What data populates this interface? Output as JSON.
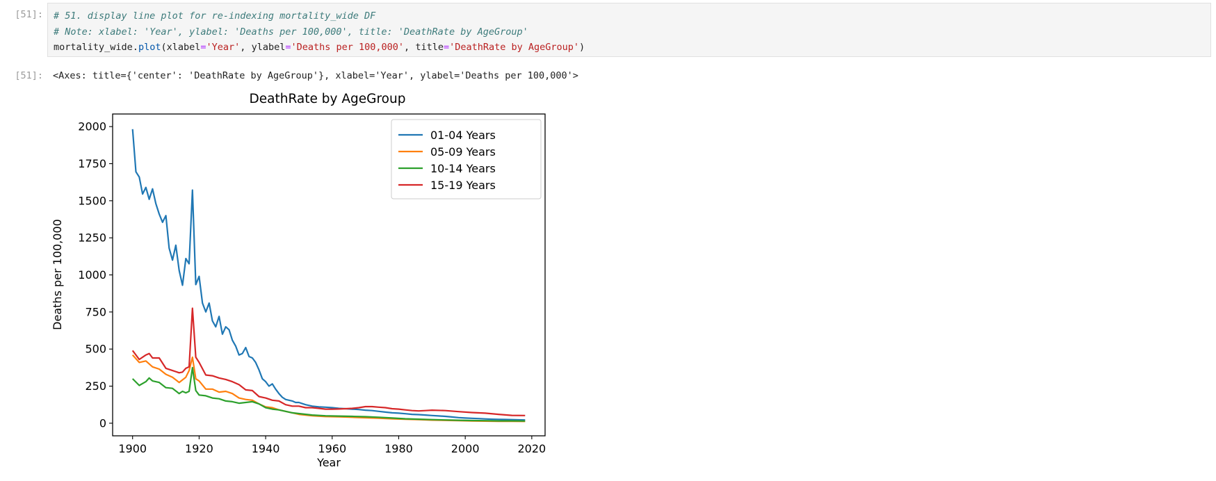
{
  "cell": {
    "in_prompt": "[51]:",
    "out_prompt": "[51]:",
    "code": {
      "comment1": "# 51. display line plot for re-indexing mortality_wide DF",
      "comment2": "# Note: xlabel: 'Year', ylabel: 'Deaths per 100,000', title: 'DeathRate by AgeGroup'",
      "obj": "mortality_wide",
      "dot": ".",
      "method": "plot",
      "open": "(",
      "kw1": "xlabel",
      "eq": "=",
      "val1": "'Year'",
      "sep": ", ",
      "kw2": "ylabel",
      "val2": "'Deaths per 100,000'",
      "kw3": "title",
      "val3": "'DeathRate by AgeGroup'",
      "close": ")"
    },
    "output_text": "<Axes: title={'center': 'DeathRate by AgeGroup'}, xlabel='Year', ylabel='Deaths per 100,000'>"
  },
  "chart_data": {
    "type": "line",
    "title": "DeathRate by AgeGroup",
    "xlabel": "Year",
    "ylabel": "Deaths per 100,000",
    "xlim": [
      1894,
      2024
    ],
    "ylim": [
      -85,
      2085
    ],
    "xticks": [
      1900,
      1920,
      1940,
      1960,
      1980,
      2000,
      2020
    ],
    "yticks": [
      0,
      250,
      500,
      750,
      1000,
      1250,
      1500,
      1750,
      2000
    ],
    "legend_position": "top-right",
    "series": [
      {
        "name": "01-04 Years",
        "color": "#1f77b4",
        "x": [
          1900,
          1901,
          1902,
          1903,
          1904,
          1905,
          1906,
          1907,
          1908,
          1909,
          1910,
          1911,
          1912,
          1913,
          1914,
          1915,
          1916,
          1917,
          1918,
          1919,
          1920,
          1921,
          1922,
          1923,
          1924,
          1925,
          1926,
          1927,
          1928,
          1929,
          1930,
          1931,
          1932,
          1933,
          1934,
          1935,
          1936,
          1937,
          1938,
          1939,
          1940,
          1941,
          1942,
          1943,
          1944,
          1945,
          1946,
          1947,
          1948,
          1949,
          1950,
          1952,
          1954,
          1956,
          1958,
          1960,
          1962,
          1964,
          1966,
          1968,
          1970,
          1972,
          1974,
          1976,
          1978,
          1980,
          1982,
          1984,
          1986,
          1988,
          1990,
          1992,
          1994,
          1996,
          1998,
          2000,
          2002,
          2004,
          2006,
          2008,
          2010,
          2012,
          2014,
          2016,
          2018
        ],
        "values": [
          1983,
          1695,
          1660,
          1545,
          1590,
          1510,
          1580,
          1480,
          1410,
          1355,
          1400,
          1180,
          1100,
          1200,
          1030,
          930,
          1110,
          1075,
          1572,
          935,
          990,
          810,
          750,
          810,
          690,
          650,
          720,
          600,
          650,
          630,
          560,
          520,
          460,
          470,
          510,
          450,
          440,
          410,
          360,
          300,
          280,
          250,
          265,
          230,
          200,
          175,
          160,
          155,
          150,
          140,
          140,
          125,
          115,
          110,
          108,
          105,
          100,
          98,
          95,
          92,
          88,
          85,
          80,
          75,
          70,
          68,
          64,
          60,
          58,
          55,
          52,
          49,
          46,
          42,
          38,
          35,
          33,
          31,
          29,
          27,
          26,
          25,
          24,
          23,
          22
        ]
      },
      {
        "name": "05-09 Years",
        "color": "#ff7f0e",
        "x": [
          1900,
          1902,
          1904,
          1906,
          1908,
          1910,
          1912,
          1914,
          1916,
          1917,
          1918,
          1919,
          1920,
          1922,
          1924,
          1926,
          1928,
          1930,
          1932,
          1934,
          1936,
          1938,
          1940,
          1942,
          1944,
          1946,
          1948,
          1950,
          1954,
          1958,
          1962,
          1966,
          1970,
          1974,
          1978,
          1982,
          1986,
          1990,
          1994,
          1998,
          2002,
          2006,
          2010,
          2014,
          2018
        ],
        "values": [
          460,
          410,
          420,
          380,
          365,
          330,
          310,
          275,
          310,
          355,
          445,
          300,
          285,
          230,
          230,
          210,
          215,
          200,
          170,
          160,
          155,
          130,
          110,
          105,
          90,
          80,
          70,
          60,
          50,
          45,
          43,
          40,
          37,
          34,
          30,
          27,
          24,
          21,
          19,
          17,
          15,
          14,
          13,
          13,
          12
        ]
      },
      {
        "name": "10-14 Years",
        "color": "#2ca02c",
        "x": [
          1900,
          1902,
          1904,
          1905,
          1906,
          1908,
          1910,
          1912,
          1914,
          1915,
          1916,
          1917,
          1918,
          1919,
          1920,
          1922,
          1924,
          1926,
          1928,
          1930,
          1932,
          1934,
          1936,
          1938,
          1940,
          1942,
          1944,
          1946,
          1948,
          1950,
          1954,
          1958,
          1962,
          1966,
          1970,
          1974,
          1978,
          1982,
          1986,
          1990,
          1994,
          1998,
          2002,
          2006,
          2010,
          2014,
          2018
        ],
        "values": [
          300,
          255,
          280,
          305,
          285,
          275,
          240,
          235,
          200,
          215,
          205,
          215,
          375,
          220,
          190,
          185,
          170,
          165,
          150,
          145,
          135,
          140,
          145,
          130,
          105,
          95,
          90,
          80,
          70,
          65,
          55,
          50,
          48,
          46,
          44,
          40,
          35,
          30,
          27,
          24,
          22,
          20,
          18,
          17,
          16,
          16,
          15
        ]
      },
      {
        "name": "15-19 Years",
        "color": "#d62728",
        "x": [
          1900,
          1902,
          1904,
          1905,
          1906,
          1908,
          1910,
          1912,
          1914,
          1915,
          1916,
          1917,
          1918,
          1919,
          1920,
          1922,
          1924,
          1926,
          1928,
          1930,
          1932,
          1934,
          1936,
          1938,
          1940,
          1942,
          1944,
          1946,
          1948,
          1950,
          1952,
          1954,
          1956,
          1958,
          1960,
          1962,
          1964,
          1966,
          1968,
          1970,
          1972,
          1974,
          1976,
          1978,
          1980,
          1982,
          1984,
          1986,
          1988,
          1990,
          1994,
          1998,
          2002,
          2006,
          2010,
          2014,
          2018
        ],
        "values": [
          490,
          430,
          460,
          470,
          440,
          440,
          370,
          355,
          340,
          345,
          370,
          380,
          775,
          445,
          410,
          325,
          320,
          305,
          295,
          280,
          260,
          225,
          220,
          180,
          170,
          155,
          150,
          125,
          115,
          115,
          105,
          105,
          100,
          95,
          95,
          96,
          98,
          100,
          105,
          112,
          112,
          108,
          105,
          98,
          95,
          90,
          85,
          83,
          85,
          88,
          85,
          78,
          72,
          68,
          60,
          53,
          52
        ]
      }
    ]
  }
}
